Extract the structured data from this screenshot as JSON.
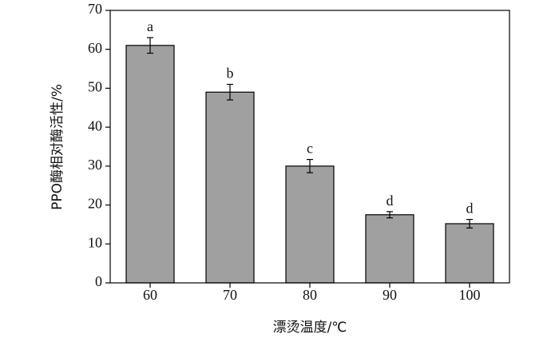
{
  "chart_data": {
    "type": "bar",
    "x_label": "漂烫温度/℃",
    "y_label": "PPO酶相对酶活性/%",
    "categories": [
      "60",
      "70",
      "80",
      "90",
      "100"
    ],
    "values": [
      61,
      49,
      30,
      17.5,
      15.2
    ],
    "errors": [
      2,
      2,
      1.7,
      0.8,
      1.1
    ],
    "labels": [
      "a",
      "b",
      "c",
      "d",
      "d"
    ],
    "color": "#a0a0a0",
    "ylim": [
      0,
      70
    ],
    "yticks": [
      0,
      10,
      20,
      30,
      40,
      50,
      60,
      70
    ]
  }
}
